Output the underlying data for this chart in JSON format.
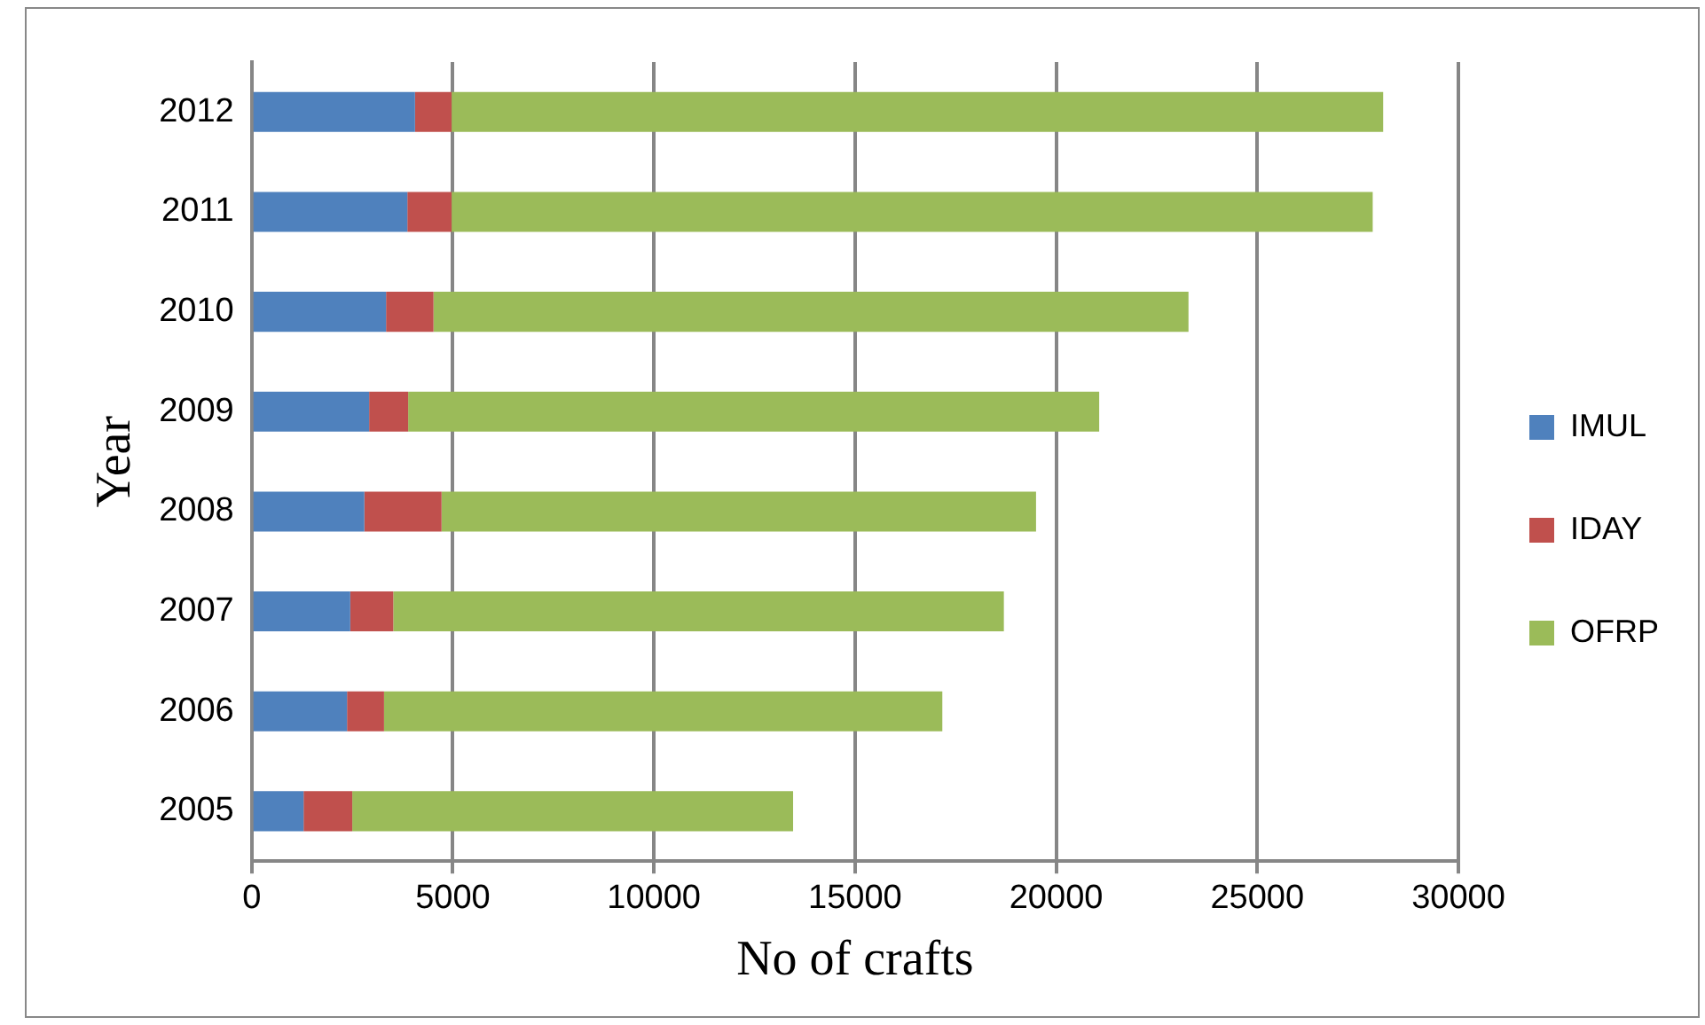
{
  "chart_data": {
    "type": "bar",
    "orientation": "horizontal",
    "stacked": true,
    "categories": [
      "2012",
      "2011",
      "2010",
      "2009",
      "2008",
      "2007",
      "2006",
      "2005"
    ],
    "series": [
      {
        "name": "IMUL",
        "color": "#4f81bd",
        "values": [
          4060,
          3870,
          3340,
          2920,
          2800,
          2450,
          2370,
          1290
        ]
      },
      {
        "name": "IDAY",
        "color": "#c0504d",
        "values": [
          910,
          1100,
          1180,
          970,
          1920,
          1070,
          920,
          1210
        ]
      },
      {
        "name": "OFRP",
        "color": "#9bbb59",
        "values": [
          23160,
          22900,
          18770,
          17180,
          14780,
          15180,
          13880,
          10960
        ]
      }
    ],
    "xlim": [
      0,
      30000
    ],
    "xticks": [
      0,
      5000,
      10000,
      15000,
      20000,
      25000,
      30000
    ],
    "xlabel": "No of crafts",
    "ylabel": "Year",
    "grid": "x",
    "legend": "right"
  }
}
